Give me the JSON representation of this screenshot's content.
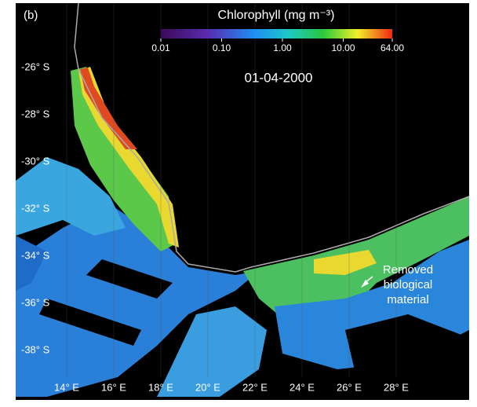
{
  "panel_label": "(b)",
  "colorbar": {
    "title": "Chlorophyll (mg m⁻³)",
    "lim": [
      0.01,
      64
    ],
    "log": true,
    "ticks": [
      {
        "value": 0.01,
        "label": "0.01"
      },
      {
        "value": 0.1,
        "label": "0.10"
      },
      {
        "value": 1,
        "label": "1.00"
      },
      {
        "value": 10,
        "label": "10.00"
      },
      {
        "value": 64,
        "label": "64.00"
      }
    ]
  },
  "date": "01-04-2000",
  "lat_labels": [
    "-26° S",
    "-28° S",
    "-30° S",
    "-32° S",
    "-34° S",
    "-36° S",
    "-38° S"
  ],
  "lon_labels": [
    "14° E",
    "16° E",
    "18° E",
    "20° E",
    "22° E",
    "24° E",
    "26° E",
    "28° E"
  ],
  "annotation": [
    "Removed",
    "biological",
    "material"
  ]
}
